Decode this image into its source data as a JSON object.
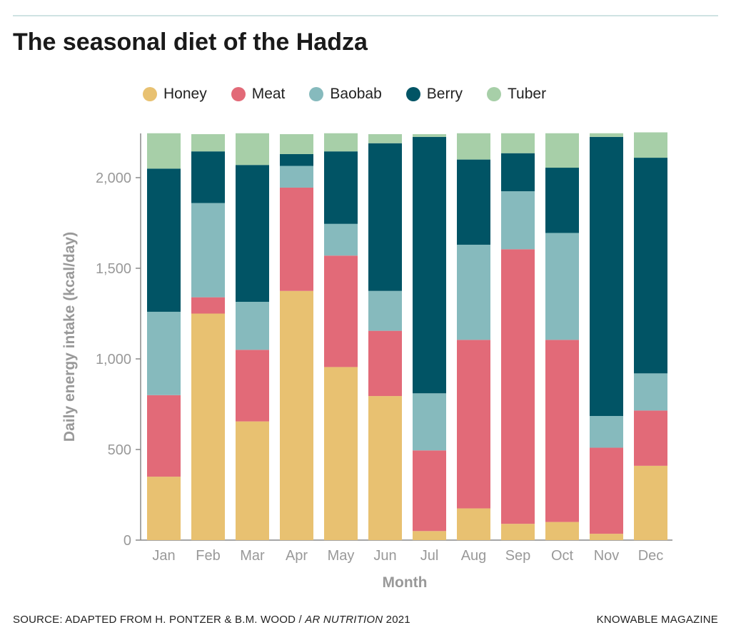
{
  "title": "The seasonal diet of the Hadza",
  "source_prefix": "SOURCE: ADAPTED FROM H. PONTZER & B.M. WOOD / ",
  "source_journal": "AR NUTRITION",
  "source_year": " 2021",
  "publisher": "KNOWABLE MAGAZINE",
  "chart_data": {
    "type": "bar",
    "stacked": true,
    "xlabel": "Month",
    "ylabel": "Daily energy intake (kcal/day)",
    "ylim": [
      0,
      2250
    ],
    "yticks": [
      0,
      500,
      1000,
      1500,
      2000
    ],
    "ytick_labels": [
      "0",
      "500",
      "1,000",
      "1,500",
      "2,000"
    ],
    "legend_placement": "top",
    "grid": false,
    "categories": [
      "Jan",
      "Feb",
      "Mar",
      "Apr",
      "May",
      "Jun",
      "Jul",
      "Aug",
      "Sep",
      "Oct",
      "Nov",
      "Dec"
    ],
    "series": [
      {
        "name": "Honey",
        "color": "#e8c171",
        "values": [
          350,
          1250,
          655,
          1375,
          955,
          795,
          50,
          175,
          90,
          100,
          35,
          410
        ]
      },
      {
        "name": "Meat",
        "color": "#e26a78",
        "values": [
          450,
          90,
          395,
          570,
          615,
          360,
          445,
          930,
          1515,
          1005,
          475,
          305
        ]
      },
      {
        "name": "Baobab",
        "color": "#86babd",
        "values": [
          460,
          520,
          265,
          120,
          175,
          220,
          315,
          525,
          320,
          590,
          175,
          205
        ]
      },
      {
        "name": "Berry",
        "color": "#015465",
        "values": [
          790,
          285,
          755,
          65,
          400,
          815,
          1415,
          470,
          210,
          360,
          1540,
          1190
        ]
      },
      {
        "name": "Tuber",
        "color": "#a7cfa8",
        "values": [
          195,
          95,
          175,
          110,
          100,
          50,
          15,
          145,
          110,
          190,
          20,
          140
        ]
      }
    ]
  }
}
